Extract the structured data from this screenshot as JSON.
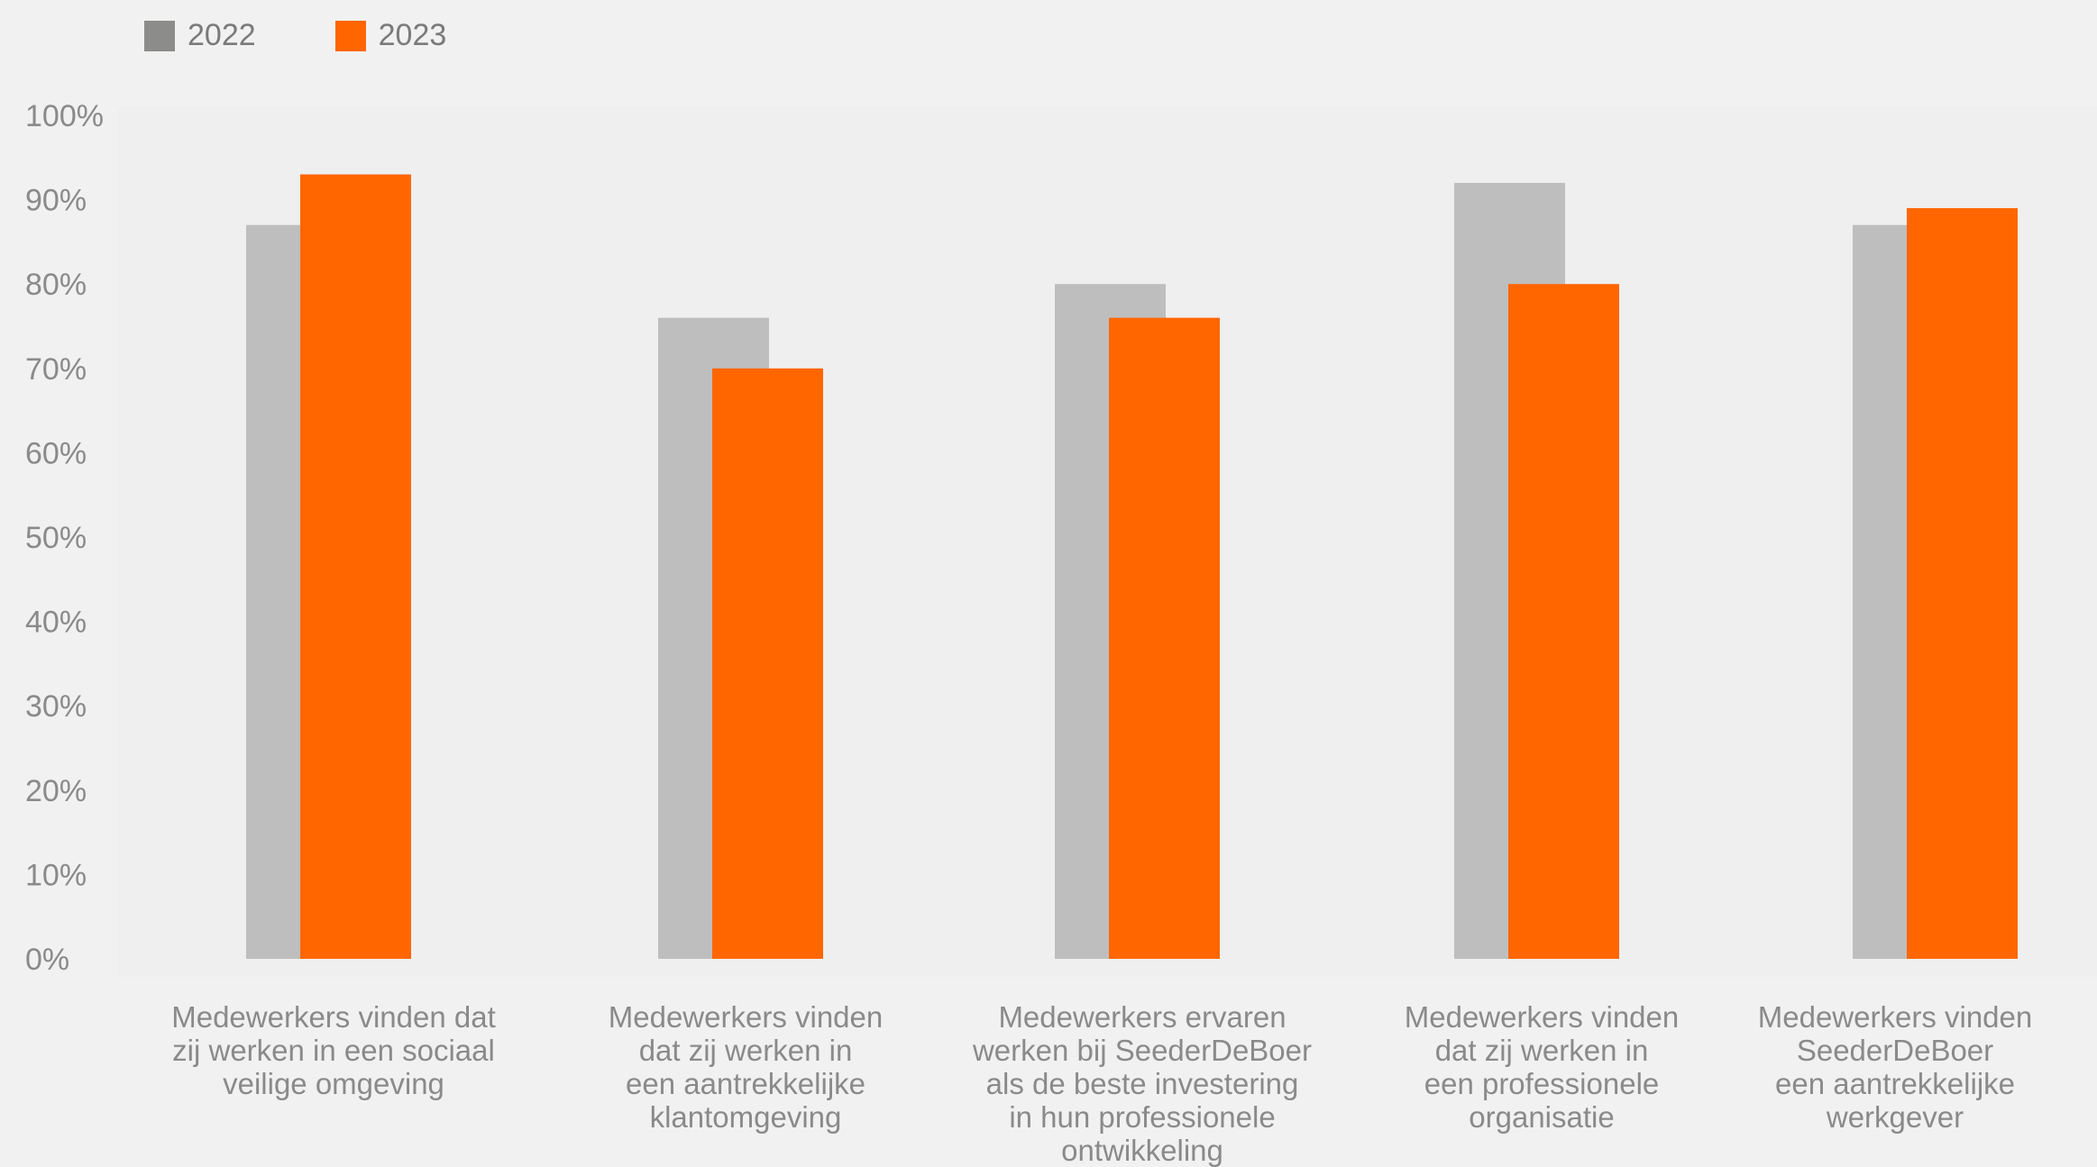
{
  "colors": {
    "background": "#f1f1f1",
    "plot_area": "#efefef",
    "series_2022": "#bebebe",
    "series_2022_legend": "#8c8c8a",
    "series_2023": "#ff6600",
    "text": "#8a8a8a"
  },
  "legend": {
    "placement": "top-left",
    "items": [
      {
        "label": "2022"
      },
      {
        "label": "2023"
      }
    ]
  },
  "chart_data": {
    "type": "bar",
    "ylim": [
      0,
      100
    ],
    "y_ticks": [
      "0%",
      "10%",
      "20%",
      "30%",
      "40%",
      "50%",
      "60%",
      "70%",
      "80%",
      "90%",
      "100%"
    ],
    "y_tick_values": [
      0,
      10,
      20,
      30,
      40,
      50,
      60,
      70,
      80,
      90,
      100
    ],
    "grid": false,
    "categories": [
      "Medewerkers vinden dat zij werken in een sociaal veilige omgeving",
      "Medewerkers vinden dat zij werken in een aantrekkelijke klantomgeving",
      "Medewerkers ervaren werken bij SeederDeBoer als de beste investering in hun professionele ontwikkeling",
      "Medewerkers vinden dat zij werken in een professionele organisatie",
      "Medewerkers vinden SeederDeBoer een aantrekkelijke werkgever"
    ],
    "category_lines": [
      [
        "Medewerkers vinden dat",
        "zij werken in een sociaal",
        "veilige omgeving"
      ],
      [
        "Medewerkers vinden",
        "dat zij werken in",
        "een aantrekkelijke",
        "klantomgeving"
      ],
      [
        "Medewerkers ervaren",
        "werken bij SeederDeBoer",
        "als de beste investering",
        "in hun professionele",
        "ontwikkeling"
      ],
      [
        "Medewerkers vinden",
        "dat zij werken in",
        "een professionele",
        "organisatie"
      ],
      [
        "Medewerkers vinden",
        "SeederDeBoer",
        "een aantrekkelijke",
        "werkgever"
      ]
    ],
    "series": [
      {
        "name": "2022",
        "values": [
          87,
          76,
          80,
          92,
          87
        ]
      },
      {
        "name": "2023",
        "values": [
          93,
          70,
          76,
          80,
          89
        ]
      }
    ]
  }
}
